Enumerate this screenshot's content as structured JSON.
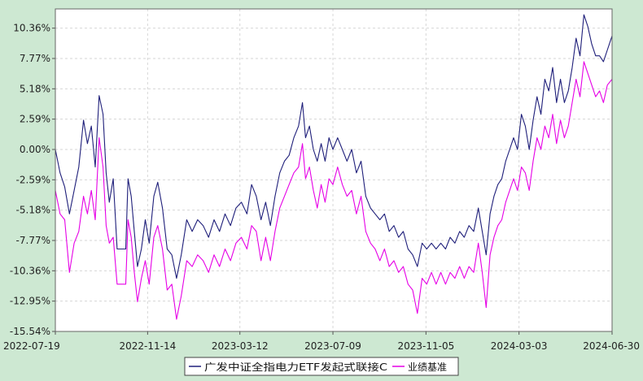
{
  "chart_data": {
    "type": "line",
    "title": "",
    "xlabel": "",
    "ylabel": "",
    "x_start": "2022-07-19",
    "x_end": "2024-06-30",
    "xtick_labels": [
      "2022-07-19",
      "2022-11-14",
      "2023-03-12",
      "2023-07-09",
      "2023-11-05",
      "2024-03-03",
      "2024-06-30"
    ],
    "ytick_labels": [
      "10.36%",
      "7.77%",
      "5.18%",
      "2.59%",
      "0.00%",
      "-2.59%",
      "-5.18%",
      "-7.77%",
      "-10.36%",
      "-12.95%",
      "-15.54%"
    ],
    "ylim": [
      -15.54,
      12.0
    ],
    "y_unit": "%",
    "grid": true,
    "legend_position": "bottom-center",
    "series": [
      {
        "name": "广发中证全指电力ETF发起式联接C",
        "color": "#1f1f7a",
        "points": [
          [
            "2022-07-19",
            0.0
          ],
          [
            "2022-07-25",
            -2.0
          ],
          [
            "2022-07-31",
            -3.2
          ],
          [
            "2022-08-06",
            -5.5
          ],
          [
            "2022-08-12",
            -3.5
          ],
          [
            "2022-08-18",
            -1.5
          ],
          [
            "2022-08-24",
            2.5
          ],
          [
            "2022-08-29",
            0.5
          ],
          [
            "2022-09-03",
            2.0
          ],
          [
            "2022-09-08",
            -1.5
          ],
          [
            "2022-09-13",
            4.6
          ],
          [
            "2022-09-18",
            3.0
          ],
          [
            "2022-09-22",
            -2.0
          ],
          [
            "2022-09-26",
            -4.5
          ],
          [
            "2022-10-01",
            -2.5
          ],
          [
            "2022-10-06",
            -8.5
          ],
          [
            "2022-10-12",
            -8.5
          ],
          [
            "2022-10-17",
            -8.5
          ],
          [
            "2022-10-20",
            -2.5
          ],
          [
            "2022-10-24",
            -4.0
          ],
          [
            "2022-10-28",
            -7.0
          ],
          [
            "2022-11-01",
            -10.0
          ],
          [
            "2022-11-06",
            -8.5
          ],
          [
            "2022-11-11",
            -6.0
          ],
          [
            "2022-11-16",
            -8.0
          ],
          [
            "2022-11-22",
            -4.0
          ],
          [
            "2022-11-27",
            -2.8
          ],
          [
            "2022-12-03",
            -5.0
          ],
          [
            "2022-12-09",
            -8.5
          ],
          [
            "2022-12-15",
            -9.0
          ],
          [
            "2022-12-21",
            -11.0
          ],
          [
            "2022-12-27",
            -9.0
          ],
          [
            "2023-01-03",
            -6.0
          ],
          [
            "2023-01-10",
            -7.0
          ],
          [
            "2023-01-17",
            -6.0
          ],
          [
            "2023-01-24",
            -6.5
          ],
          [
            "2023-01-31",
            -7.5
          ],
          [
            "2023-02-07",
            -6.0
          ],
          [
            "2023-02-14",
            -7.0
          ],
          [
            "2023-02-21",
            -5.5
          ],
          [
            "2023-02-28",
            -6.5
          ],
          [
            "2023-03-07",
            -5.0
          ],
          [
            "2023-03-14",
            -4.5
          ],
          [
            "2023-03-21",
            -5.5
          ],
          [
            "2023-03-27",
            -3.0
          ],
          [
            "2023-04-02",
            -4.0
          ],
          [
            "2023-04-08",
            -6.0
          ],
          [
            "2023-04-14",
            -4.5
          ],
          [
            "2023-04-20",
            -6.5
          ],
          [
            "2023-04-26",
            -4.0
          ],
          [
            "2023-05-02",
            -2.0
          ],
          [
            "2023-05-08",
            -1.0
          ],
          [
            "2023-05-14",
            -0.5
          ],
          [
            "2023-05-20",
            1.0
          ],
          [
            "2023-05-26",
            2.0
          ],
          [
            "2023-05-31",
            4.0
          ],
          [
            "2023-06-04",
            1.0
          ],
          [
            "2023-06-09",
            2.0
          ],
          [
            "2023-06-14",
            0.0
          ],
          [
            "2023-06-19",
            -1.0
          ],
          [
            "2023-06-24",
            0.5
          ],
          [
            "2023-06-29",
            -1.0
          ],
          [
            "2023-07-04",
            1.0
          ],
          [
            "2023-07-09",
            0.0
          ],
          [
            "2023-07-15",
            1.0
          ],
          [
            "2023-07-21",
            0.0
          ],
          [
            "2023-07-27",
            -1.0
          ],
          [
            "2023-08-02",
            0.0
          ],
          [
            "2023-08-08",
            -2.0
          ],
          [
            "2023-08-14",
            -1.0
          ],
          [
            "2023-08-20",
            -4.0
          ],
          [
            "2023-08-26",
            -5.0
          ],
          [
            "2023-09-01",
            -5.5
          ],
          [
            "2023-09-07",
            -6.0
          ],
          [
            "2023-09-13",
            -5.5
          ],
          [
            "2023-09-19",
            -7.0
          ],
          [
            "2023-09-25",
            -6.5
          ],
          [
            "2023-10-01",
            -7.5
          ],
          [
            "2023-10-07",
            -7.0
          ],
          [
            "2023-10-13",
            -8.5
          ],
          [
            "2023-10-19",
            -9.0
          ],
          [
            "2023-10-25",
            -10.0
          ],
          [
            "2023-10-31",
            -8.0
          ],
          [
            "2023-11-06",
            -8.5
          ],
          [
            "2023-11-12",
            -8.0
          ],
          [
            "2023-11-18",
            -8.5
          ],
          [
            "2023-11-24",
            -8.0
          ],
          [
            "2023-11-30",
            -8.5
          ],
          [
            "2023-12-06",
            -7.5
          ],
          [
            "2023-12-12",
            -8.0
          ],
          [
            "2023-12-18",
            -7.0
          ],
          [
            "2023-12-24",
            -7.5
          ],
          [
            "2023-12-30",
            -6.5
          ],
          [
            "2024-01-05",
            -7.0
          ],
          [
            "2024-01-11",
            -5.0
          ],
          [
            "2024-01-16",
            -7.0
          ],
          [
            "2024-01-21",
            -9.0
          ],
          [
            "2024-01-26",
            -5.5
          ],
          [
            "2024-01-31",
            -4.0
          ],
          [
            "2024-02-05",
            -3.0
          ],
          [
            "2024-02-10",
            -2.5
          ],
          [
            "2024-02-15",
            -1.0
          ],
          [
            "2024-02-20",
            0.0
          ],
          [
            "2024-02-25",
            1.0
          ],
          [
            "2024-03-01",
            0.0
          ],
          [
            "2024-03-06",
            3.0
          ],
          [
            "2024-03-11",
            2.0
          ],
          [
            "2024-03-16",
            0.0
          ],
          [
            "2024-03-21",
            2.5
          ],
          [
            "2024-03-26",
            4.5
          ],
          [
            "2024-03-31",
            3.0
          ],
          [
            "2024-04-05",
            6.0
          ],
          [
            "2024-04-10",
            5.0
          ],
          [
            "2024-04-15",
            7.0
          ],
          [
            "2024-04-20",
            4.0
          ],
          [
            "2024-04-25",
            6.0
          ],
          [
            "2024-04-30",
            4.0
          ],
          [
            "2024-05-05",
            5.0
          ],
          [
            "2024-05-10",
            7.0
          ],
          [
            "2024-05-15",
            9.5
          ],
          [
            "2024-05-20",
            8.0
          ],
          [
            "2024-05-25",
            11.5
          ],
          [
            "2024-05-30",
            10.5
          ],
          [
            "2024-06-04",
            9.0
          ],
          [
            "2024-06-09",
            8.0
          ],
          [
            "2024-06-14",
            8.0
          ],
          [
            "2024-06-19",
            7.5
          ],
          [
            "2024-06-24",
            8.5
          ],
          [
            "2024-06-30",
            9.7
          ]
        ]
      },
      {
        "name": "业绩基准",
        "color": "#e600e6",
        "points": [
          [
            "2022-07-19",
            -3.5
          ],
          [
            "2022-07-25",
            -5.5
          ],
          [
            "2022-07-31",
            -6.0
          ],
          [
            "2022-08-06",
            -10.5
          ],
          [
            "2022-08-12",
            -8.0
          ],
          [
            "2022-08-18",
            -7.0
          ],
          [
            "2022-08-24",
            -4.0
          ],
          [
            "2022-08-29",
            -5.5
          ],
          [
            "2022-09-03",
            -3.5
          ],
          [
            "2022-09-08",
            -6.0
          ],
          [
            "2022-09-13",
            1.0
          ],
          [
            "2022-09-18",
            -1.5
          ],
          [
            "2022-09-22",
            -6.5
          ],
          [
            "2022-09-26",
            -8.0
          ],
          [
            "2022-10-01",
            -7.5
          ],
          [
            "2022-10-06",
            -11.5
          ],
          [
            "2022-10-12",
            -11.5
          ],
          [
            "2022-10-17",
            -11.5
          ],
          [
            "2022-10-20",
            -6.0
          ],
          [
            "2022-10-24",
            -7.5
          ],
          [
            "2022-10-28",
            -10.5
          ],
          [
            "2022-11-01",
            -13.0
          ],
          [
            "2022-11-06",
            -11.0
          ],
          [
            "2022-11-11",
            -9.5
          ],
          [
            "2022-11-16",
            -11.5
          ],
          [
            "2022-11-22",
            -7.5
          ],
          [
            "2022-11-27",
            -6.5
          ],
          [
            "2022-12-03",
            -8.5
          ],
          [
            "2022-12-09",
            -12.0
          ],
          [
            "2022-12-15",
            -11.5
          ],
          [
            "2022-12-21",
            -14.5
          ],
          [
            "2022-12-27",
            -12.5
          ],
          [
            "2023-01-03",
            -9.5
          ],
          [
            "2023-01-10",
            -10.0
          ],
          [
            "2023-01-17",
            -9.0
          ],
          [
            "2023-01-24",
            -9.5
          ],
          [
            "2023-01-31",
            -10.5
          ],
          [
            "2023-02-07",
            -9.0
          ],
          [
            "2023-02-14",
            -10.0
          ],
          [
            "2023-02-21",
            -8.5
          ],
          [
            "2023-02-28",
            -9.5
          ],
          [
            "2023-03-07",
            -8.0
          ],
          [
            "2023-03-14",
            -7.5
          ],
          [
            "2023-03-21",
            -8.5
          ],
          [
            "2023-03-27",
            -6.5
          ],
          [
            "2023-04-02",
            -7.0
          ],
          [
            "2023-04-08",
            -9.5
          ],
          [
            "2023-04-14",
            -7.5
          ],
          [
            "2023-04-20",
            -9.5
          ],
          [
            "2023-04-26",
            -7.0
          ],
          [
            "2023-05-02",
            -5.0
          ],
          [
            "2023-05-08",
            -4.0
          ],
          [
            "2023-05-14",
            -3.0
          ],
          [
            "2023-05-20",
            -2.0
          ],
          [
            "2023-05-26",
            -1.5
          ],
          [
            "2023-05-31",
            0.5
          ],
          [
            "2023-06-04",
            -2.5
          ],
          [
            "2023-06-09",
            -1.5
          ],
          [
            "2023-06-14",
            -3.5
          ],
          [
            "2023-06-19",
            -5.0
          ],
          [
            "2023-06-24",
            -3.0
          ],
          [
            "2023-06-29",
            -4.5
          ],
          [
            "2023-07-04",
            -2.5
          ],
          [
            "2023-07-09",
            -3.0
          ],
          [
            "2023-07-15",
            -1.5
          ],
          [
            "2023-07-21",
            -3.0
          ],
          [
            "2023-07-27",
            -4.0
          ],
          [
            "2023-08-02",
            -3.5
          ],
          [
            "2023-08-08",
            -5.5
          ],
          [
            "2023-08-14",
            -4.0
          ],
          [
            "2023-08-20",
            -7.0
          ],
          [
            "2023-08-26",
            -8.0
          ],
          [
            "2023-09-01",
            -8.5
          ],
          [
            "2023-09-07",
            -9.5
          ],
          [
            "2023-09-13",
            -8.5
          ],
          [
            "2023-09-19",
            -10.0
          ],
          [
            "2023-09-25",
            -9.5
          ],
          [
            "2023-10-01",
            -10.5
          ],
          [
            "2023-10-07",
            -10.0
          ],
          [
            "2023-10-13",
            -11.5
          ],
          [
            "2023-10-19",
            -12.0
          ],
          [
            "2023-10-25",
            -14.0
          ],
          [
            "2023-10-31",
            -11.0
          ],
          [
            "2023-11-06",
            -11.5
          ],
          [
            "2023-11-12",
            -10.5
          ],
          [
            "2023-11-18",
            -11.5
          ],
          [
            "2023-11-24",
            -10.5
          ],
          [
            "2023-11-30",
            -11.5
          ],
          [
            "2023-12-06",
            -10.5
          ],
          [
            "2023-12-12",
            -11.0
          ],
          [
            "2023-12-18",
            -10.0
          ],
          [
            "2023-12-24",
            -11.0
          ],
          [
            "2023-12-30",
            -10.0
          ],
          [
            "2024-01-05",
            -10.5
          ],
          [
            "2024-01-11",
            -8.0
          ],
          [
            "2024-01-16",
            -10.5
          ],
          [
            "2024-01-21",
            -13.5
          ],
          [
            "2024-01-26",
            -9.0
          ],
          [
            "2024-01-31",
            -7.5
          ],
          [
            "2024-02-05",
            -6.5
          ],
          [
            "2024-02-10",
            -6.0
          ],
          [
            "2024-02-15",
            -4.5
          ],
          [
            "2024-02-20",
            -3.5
          ],
          [
            "2024-02-25",
            -2.5
          ],
          [
            "2024-03-01",
            -3.5
          ],
          [
            "2024-03-06",
            -1.5
          ],
          [
            "2024-03-11",
            -2.0
          ],
          [
            "2024-03-16",
            -3.5
          ],
          [
            "2024-03-21",
            -1.0
          ],
          [
            "2024-03-26",
            1.0
          ],
          [
            "2024-03-31",
            0.0
          ],
          [
            "2024-04-05",
            2.0
          ],
          [
            "2024-04-10",
            1.0
          ],
          [
            "2024-04-15",
            3.0
          ],
          [
            "2024-04-20",
            0.5
          ],
          [
            "2024-04-25",
            2.5
          ],
          [
            "2024-04-30",
            1.0
          ],
          [
            "2024-05-05",
            2.0
          ],
          [
            "2024-05-10",
            4.0
          ],
          [
            "2024-05-15",
            6.0
          ],
          [
            "2024-05-20",
            4.5
          ],
          [
            "2024-05-25",
            7.5
          ],
          [
            "2024-05-30",
            6.5
          ],
          [
            "2024-06-04",
            5.5
          ],
          [
            "2024-06-09",
            4.5
          ],
          [
            "2024-06-14",
            5.0
          ],
          [
            "2024-06-19",
            4.0
          ],
          [
            "2024-06-24",
            5.5
          ],
          [
            "2024-06-30",
            6.0
          ]
        ]
      }
    ]
  }
}
